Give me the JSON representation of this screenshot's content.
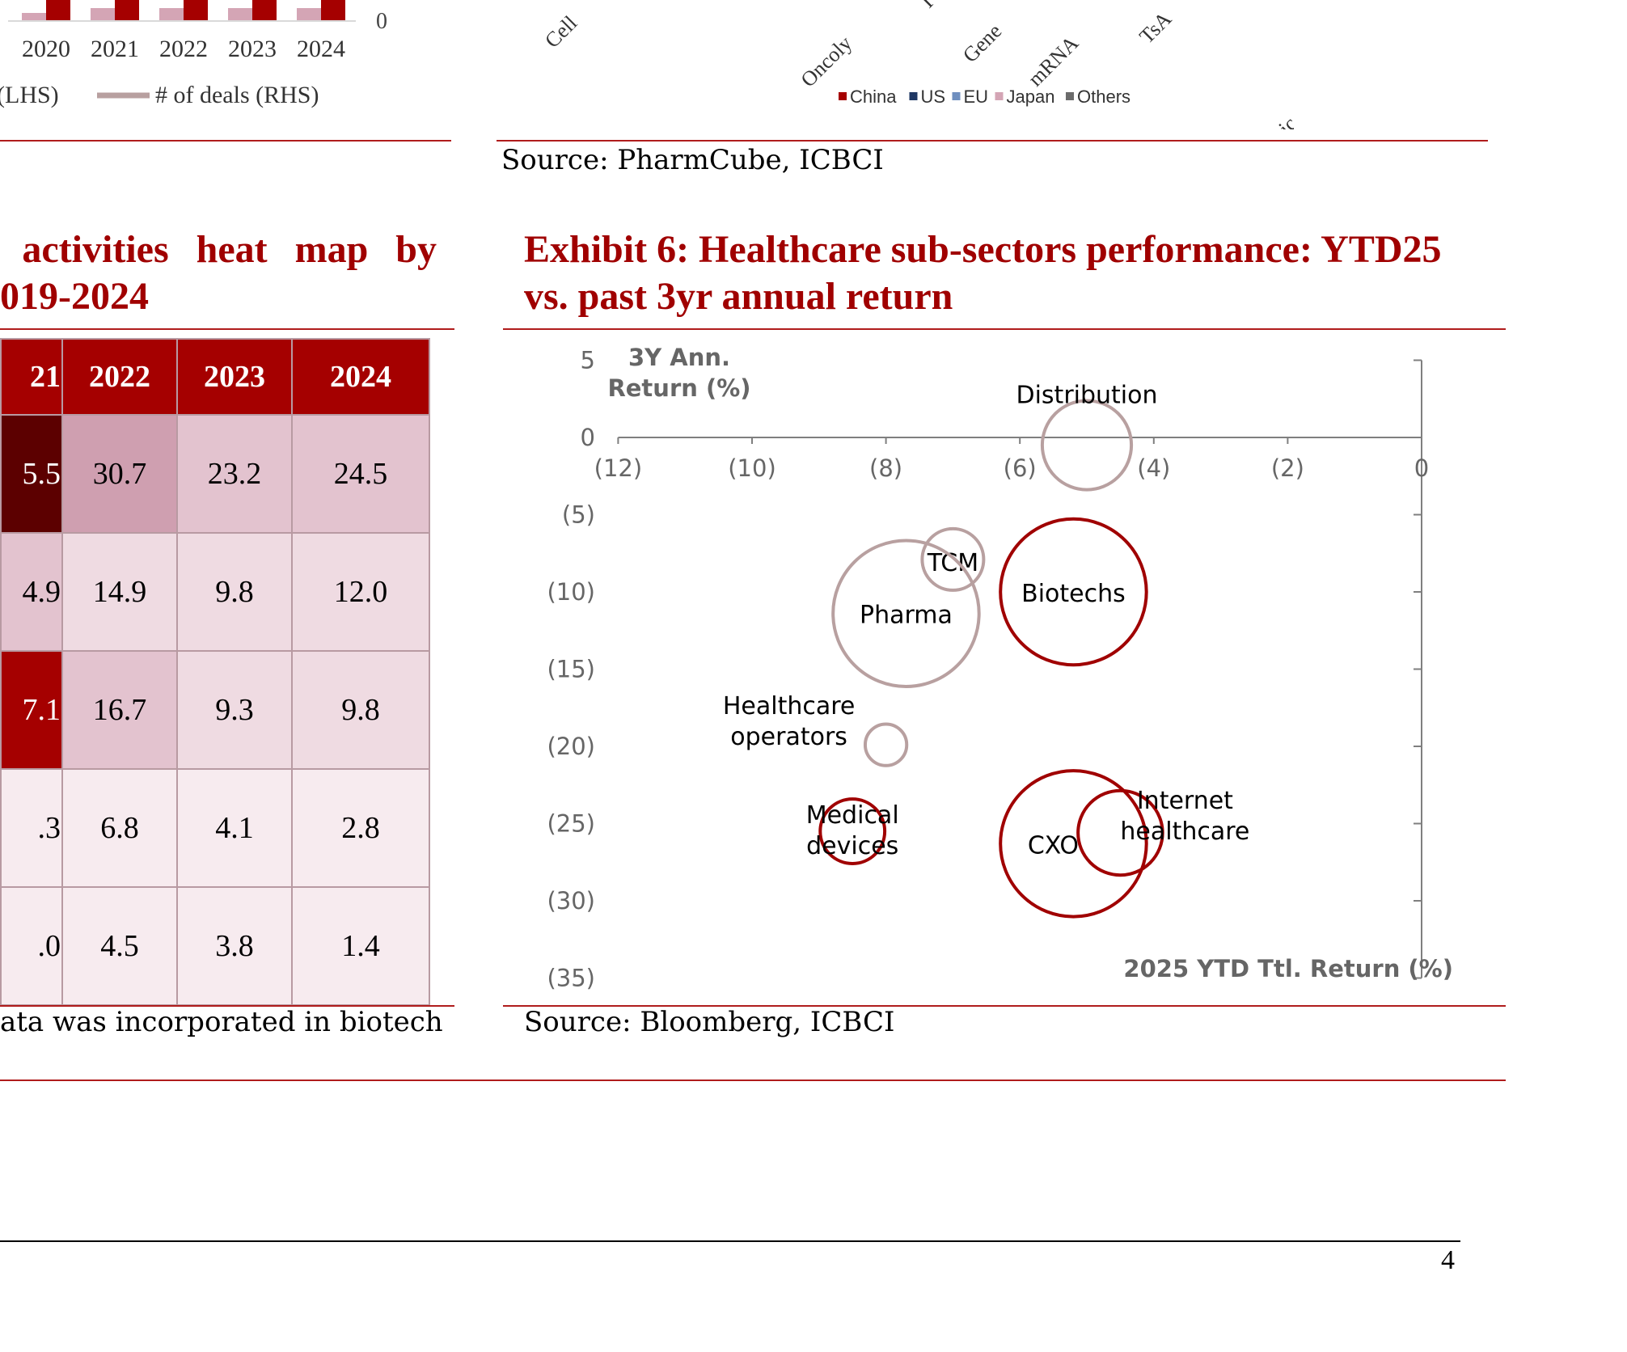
{
  "top_left_chart": {
    "years": [
      "2020",
      "2021",
      "2022",
      "2023",
      "2024"
    ],
    "rhs_zero_label": "0",
    "legend": [
      "(LHS)",
      "# of deals (RHS)"
    ]
  },
  "top_right_chart": {
    "axis_labels": [
      "Cell",
      "Oncoly",
      "I",
      "Gene",
      "mRNA",
      "TsA",
      "Small Nucleic Ac"
    ],
    "legend": [
      {
        "label": "China",
        "color": "#a50000"
      },
      {
        "label": "US",
        "color": "#1f3864"
      },
      {
        "label": "EU",
        "color": "#6f8fbf"
      },
      {
        "label": "Japan",
        "color": "#d4a5b5"
      },
      {
        "label": "Others",
        "color": "#6b6b6b"
      }
    ],
    "source": "Source: PharmCube, ICBCI"
  },
  "left_exhibit": {
    "title_line1": "activities heat map by",
    "title_line2": "019-2024",
    "headers": [
      "21",
      "2022",
      "2023",
      "2024"
    ],
    "rows": [
      {
        "values": [
          "5.5",
          "30.7",
          "23.2",
          "24.5"
        ],
        "colors": [
          "#5c0000",
          "#cf9fb0",
          "#e3c3cf",
          "#e3c3cf"
        ],
        "text_colors": [
          "#ffffff",
          "#000",
          "#000",
          "#000"
        ]
      },
      {
        "values": [
          "4.9",
          "14.9",
          "9.8",
          "12.0"
        ],
        "colors": [
          "#e3c3cf",
          "#efdbe2",
          "#efdbe2",
          "#efdbe2"
        ],
        "text_colors": [
          "#000",
          "#000",
          "#000",
          "#000"
        ]
      },
      {
        "values": [
          "7.1",
          "16.7",
          "9.3",
          "9.8"
        ],
        "colors": [
          "#a50000",
          "#e3c3cf",
          "#efdbe2",
          "#efdbe2"
        ],
        "text_colors": [
          "#ffffff",
          "#000",
          "#000",
          "#000"
        ]
      },
      {
        "values": [
          ".3",
          "6.8",
          "4.1",
          "2.8"
        ],
        "colors": [
          "#f7ebef",
          "#f7ebef",
          "#f7ebef",
          "#f7ebef"
        ],
        "text_colors": [
          "#000",
          "#000",
          "#000",
          "#000"
        ]
      },
      {
        "values": [
          ".0",
          "4.5",
          "3.8",
          "1.4"
        ],
        "colors": [
          "#f7ebef",
          "#f7ebef",
          "#f7ebef",
          "#f7ebef"
        ],
        "text_colors": [
          "#000",
          "#000",
          "#000",
          "#000"
        ]
      }
    ],
    "note": "ata was incorporated in biotech"
  },
  "exhibit6": {
    "title_line1": "Exhibit 6: Healthcare sub-sectors performance: YTD25",
    "title_line2": "vs. past 3yr annual return",
    "source": "Source: Bloomberg, ICBCI"
  },
  "chart_data": {
    "type": "bubble",
    "ylabel_line1": "3Y Ann.",
    "ylabel_line2": "Return (%)",
    "xlabel": "2025 YTD Ttl. Return (%)",
    "xlim": [
      -12,
      0
    ],
    "ylim": [
      -35,
      5
    ],
    "x_ticks": [
      "(12)",
      "(10)",
      "(8)",
      "(6)",
      "(4)",
      "(2)",
      "0"
    ],
    "x_tick_values": [
      -12,
      -10,
      -8,
      -6,
      -4,
      -2,
      0
    ],
    "y_ticks": [
      "5",
      "0",
      "(5)",
      "(10)",
      "(15)",
      "(20)",
      "(25)",
      "(30)",
      "(35)"
    ],
    "y_tick_values": [
      5,
      0,
      -5,
      -10,
      -15,
      -20,
      -25,
      -30,
      -35
    ],
    "series": [
      {
        "label_lines": [
          "Distribution"
        ],
        "x": -5.0,
        "y": -0.5,
        "size": 0.58,
        "color": "#b8a0a0"
      },
      {
        "label_lines": [
          "TCM"
        ],
        "x": -7.0,
        "y": -7.9,
        "size": 0.4,
        "color": "#b8a0a0"
      },
      {
        "label_lines": [
          "Pharma"
        ],
        "x": -7.7,
        "y": -11.4,
        "size": 0.95,
        "color": "#b8a0a0"
      },
      {
        "label_lines": [
          "Biotechs"
        ],
        "x": -5.2,
        "y": -10.0,
        "size": 0.95,
        "color": "#a00000"
      },
      {
        "label_lines": [
          "Healthcare",
          "operators"
        ],
        "x": -8.0,
        "y": -19.9,
        "size": 0.27,
        "color": "#b8a0a0"
      },
      {
        "label_lines": [
          "Medical",
          "devices"
        ],
        "x": -8.5,
        "y": -25.5,
        "size": 0.42,
        "color": "#a00000"
      },
      {
        "label_lines": [
          "CXO"
        ],
        "x": -5.2,
        "y": -26.3,
        "size": 0.95,
        "color": "#a00000"
      },
      {
        "label_lines": [
          "Internet",
          "healthcare"
        ],
        "x": -4.5,
        "y": -25.6,
        "size": 0.55,
        "color": "#a00000"
      }
    ]
  },
  "page_number": "4"
}
